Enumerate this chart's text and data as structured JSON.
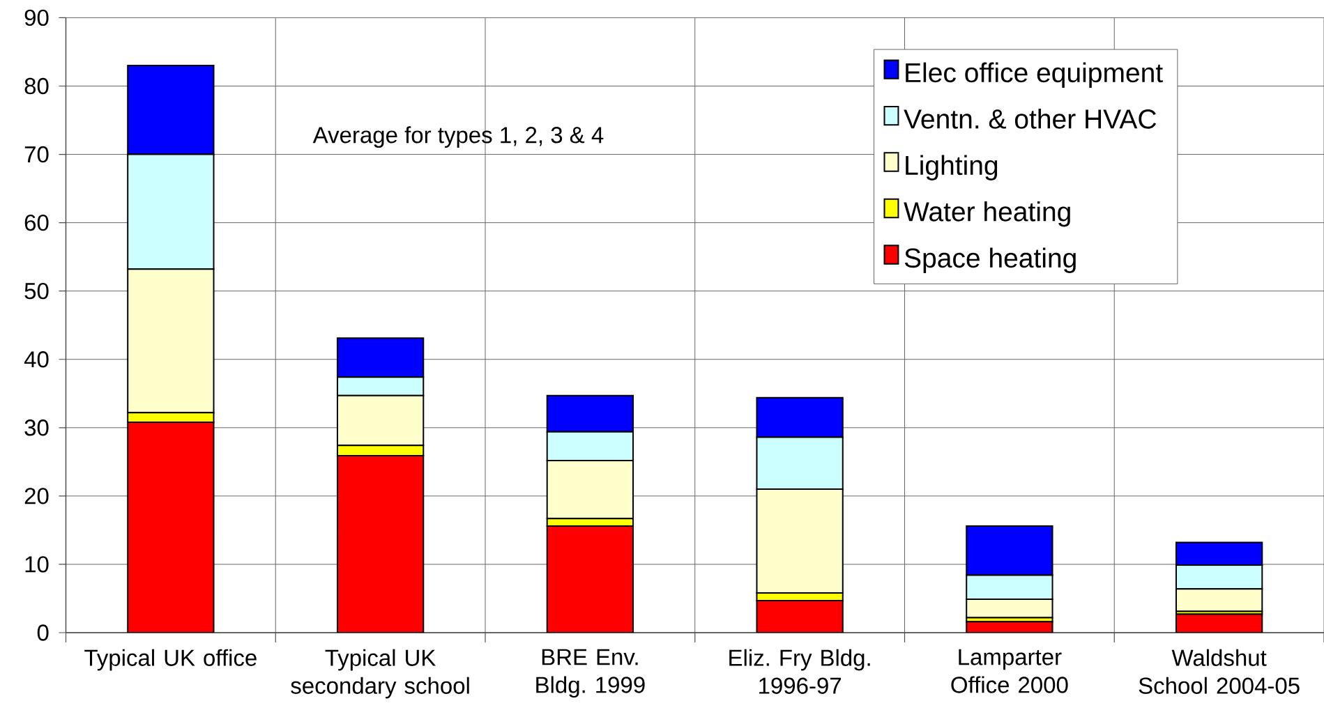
{
  "chart_data": {
    "type": "bar",
    "stacked": true,
    "categories": [
      "Typical UK office",
      "Typical UK secondary school",
      "BRE Env. Bldg. 1999",
      "Eliz. Fry Bldg. 1996-97",
      "Lamparter Office 2000",
      "Waldshut School 2004-05"
    ],
    "series": [
      {
        "name": "Space heating",
        "color": "#ff0000",
        "values": [
          30.8,
          25.9,
          15.6,
          4.7,
          1.6,
          2.7
        ]
      },
      {
        "name": "Water heating",
        "color": "#ffff00",
        "values": [
          1.4,
          1.5,
          1.1,
          1.1,
          0.6,
          0.4
        ]
      },
      {
        "name": "Lighting",
        "color": "#ffffcc",
        "values": [
          21,
          7.3,
          8.5,
          15.2,
          2.7,
          3.3
        ]
      },
      {
        "name": "Ventn. & other HVAC",
        "color": "#ccffff",
        "values": [
          16.8,
          2.7,
          4.2,
          7.6,
          3.5,
          3.5
        ]
      },
      {
        "name": "Elec office equipment",
        "color": "#0000ff",
        "values": [
          13,
          5.7,
          5.3,
          5.8,
          7.2,
          3.3
        ]
      }
    ],
    "ylim": [
      0,
      90
    ],
    "yticks": [
      0,
      10,
      20,
      30,
      40,
      50,
      60,
      70,
      80,
      90
    ],
    "grid": true,
    "legend": "top right",
    "annotations": [
      "Average for types 1, 2, 3 & 4"
    ]
  }
}
